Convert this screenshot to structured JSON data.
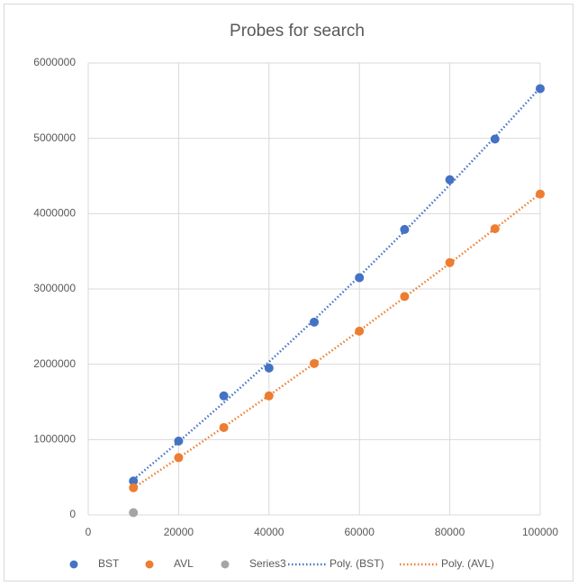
{
  "chart_data": {
    "type": "scatter",
    "title": "Probes for search",
    "xlim": [
      0,
      100000
    ],
    "xticks": [
      0,
      20000,
      40000,
      60000,
      80000,
      100000
    ],
    "ylim": [
      0,
      6000000
    ],
    "yticks": [
      0,
      1000000,
      2000000,
      3000000,
      4000000,
      5000000,
      6000000
    ],
    "grid": true,
    "legend": "bottom",
    "series": [
      {
        "name": "BST",
        "color": "#4472c4",
        "x": [
          10000,
          20000,
          30000,
          40000,
          50000,
          60000,
          70000,
          80000,
          90000,
          100000
        ],
        "values": [
          450000,
          980000,
          1580000,
          1950000,
          2560000,
          3150000,
          3790000,
          4450000,
          4990000,
          5660000
        ]
      },
      {
        "name": "AVL",
        "color": "#ed7d31",
        "x": [
          10000,
          20000,
          30000,
          40000,
          50000,
          60000,
          70000,
          80000,
          90000,
          100000
        ],
        "values": [
          360000,
          760000,
          1160000,
          1580000,
          2010000,
          2440000,
          2900000,
          3350000,
          3800000,
          4260000
        ]
      },
      {
        "name": "Series3",
        "color": "#a5a5a5",
        "x": [
          10000
        ],
        "values": [
          30000
        ]
      }
    ],
    "trendlines": [
      {
        "name": "Poly. (BST)",
        "series": 0,
        "order": 2,
        "color": "#4472c4"
      },
      {
        "name": "Poly. (AVL)",
        "series": 1,
        "order": 2,
        "color": "#ed7d31"
      }
    ]
  }
}
